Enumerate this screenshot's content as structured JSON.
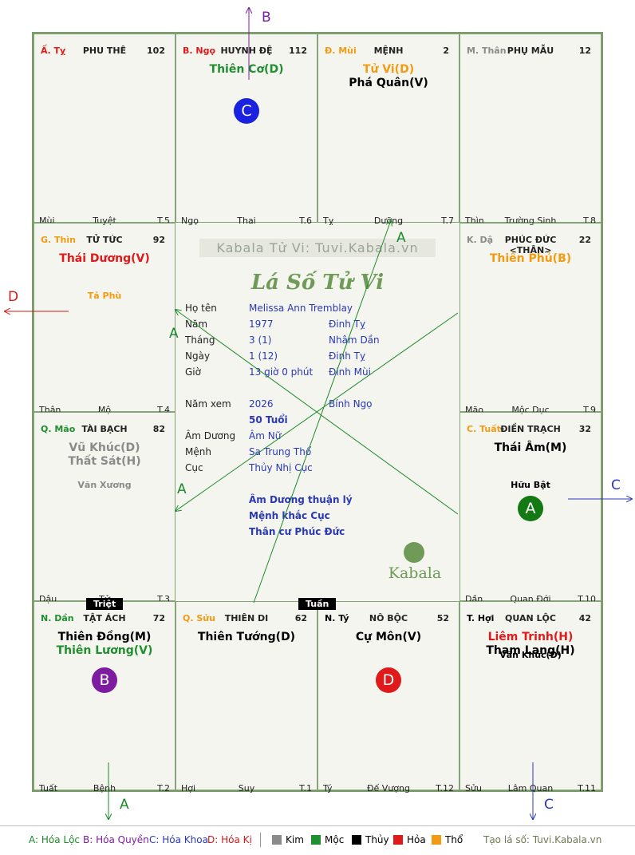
{
  "palaces": {
    "ty": {
      "can": "Ấ. Tỵ",
      "name": "PHU THÊ",
      "num": "102",
      "stars": [],
      "minors": [],
      "foot": [
        "Mùi",
        "Tuyệt",
        "T.5"
      ]
    },
    "ngo": {
      "can": "B. Ngọ",
      "name": "HUYNH ĐỆ",
      "num": "112",
      "stars": [
        "Thiên Cơ(D)"
      ],
      "minors": [],
      "foot": [
        "Ngọ",
        "Thai",
        "T.6"
      ]
    },
    "mui": {
      "can": "Đ. Mùi",
      "name": "MỆNH",
      "num": "2",
      "stars": [
        "Tử Vi(D)",
        "Phá Quân(V)"
      ],
      "minors": [],
      "foot": [
        "Tỵ",
        "Dưỡng",
        "T.7"
      ]
    },
    "than": {
      "can": "M. Thân",
      "name": "PHỤ MẪU",
      "num": "12",
      "stars": [],
      "minors": [],
      "foot": [
        "Thìn",
        "Trường Sinh",
        "T.8"
      ]
    },
    "thin": {
      "can": "G. Thìn",
      "name": "TỬ TỨC",
      "num": "92",
      "stars": [
        "Thái Dương(V)"
      ],
      "minors": [
        "Tả Phù"
      ],
      "foot": [
        "Thân",
        "Mộ",
        "T.4"
      ]
    },
    "dau": {
      "can": "K. Dậ",
      "name": "PHÚC ĐỨC <THÂN>",
      "num": "22",
      "stars": [
        "Thiên Phủ(B)"
      ],
      "minors": [],
      "foot": [
        "Mão",
        "Mộc Dục",
        "T.9"
      ]
    },
    "mao": {
      "can": "Q. Mão",
      "name": "TÀI BẠCH",
      "num": "82",
      "stars": [
        "Vũ Khúc(D)",
        "Thất Sát(H)"
      ],
      "minors": [
        "Văn Xương"
      ],
      "foot": [
        "Dậu",
        "Tử",
        "T.3"
      ]
    },
    "tuat": {
      "can": "C. Tuất",
      "name": "ĐIỀN TRẠCH",
      "num": "32",
      "stars": [
        "Thái Âm(M)"
      ],
      "minors": [
        "Hữu Bật"
      ],
      "foot": [
        "Dần",
        "Quan Đới",
        "T.10"
      ]
    },
    "dan": {
      "can": "N. Dần",
      "name": "TẬT ÁCH",
      "num": "72",
      "stars": [
        "Thiên Đồng(M)",
        "Thiên Lương(V)"
      ],
      "minors": [],
      "foot": [
        "Tuất",
        "Bệnh",
        "T.2"
      ]
    },
    "suu": {
      "can": "Q. Sửu",
      "name": "THIÊN DI",
      "num": "62",
      "stars": [
        "Thiên Tướng(D)"
      ],
      "minors": [],
      "foot": [
        "Hợi",
        "Suy",
        "T.1"
      ]
    },
    "ty2": {
      "can": "N. Tý",
      "name": "NÔ BỘC",
      "num": "52",
      "stars": [
        "Cự Môn(V)"
      ],
      "minors": [],
      "foot": [
        "Tý",
        "Đế Vượng",
        "T.12"
      ]
    },
    "hoi": {
      "can": "T. Hợi",
      "name": "QUAN LỘC",
      "num": "42",
      "stars": [
        "Liêm Trinh(H)",
        "Tham Lang(H)"
      ],
      "minors": [
        "Văn Khúc(D)"
      ],
      "foot": [
        "Sửu",
        "Lâm Quan",
        "T.11"
      ]
    }
  },
  "colors": {
    "kim": "#8a8a8a",
    "moc": "#1f8f2f",
    "thuy": "#000000",
    "hoa": "#e01a1a",
    "tho": "#f29b12"
  },
  "center": {
    "watermark": "Kabala Tử Vi: Tuvi.Kabala.vn",
    "title": "Lá Số Tử Vi",
    "labels": [
      "Họ tên",
      "Năm",
      "Tháng",
      "Ngày",
      "Giờ",
      "Năm xem",
      "Âm Dương",
      "Mệnh",
      "Cục"
    ],
    "ho_ten": "Melissa Ann Tremblay",
    "nam": "1977",
    "nam_cc": "Đinh Tỵ",
    "thang": "3  (1)",
    "thang_cc": "Nhâm Dần",
    "ngay": "1  (12)",
    "ngay_cc": "Đinh Tỵ",
    "gio": "13 giờ 0 phút",
    "gio_cc": "Đinh Mùi",
    "nam_xem": "2026",
    "nam_xem_cc": "Bính Ngọ",
    "tuoi": "50 Tuổi",
    "am_duong": "Âm Nữ",
    "menh": "Sa Trung Thổ",
    "cuc": "Thủy Nhị Cục",
    "notes": [
      "Âm Dương thuận lý",
      "Mệnh khắc Cục",
      "Thân cư Phúc Đức"
    ],
    "logo": "Kabala"
  },
  "badges": {
    "triet": "Triệt",
    "tuan": "Tuần"
  },
  "circles": {
    "ngo": "C",
    "tuat": "A",
    "dan": "B",
    "ty2": "D"
  },
  "arrows": {
    "top": "B",
    "left": "D",
    "right": "C",
    "bottom_left": "A",
    "bottom_right": "C",
    "inner": [
      "A",
      "A",
      "A"
    ]
  },
  "legend": {
    "items": [
      "A: Hóa Lộc",
      "B: Hóa Quyền",
      "C: Hóa Khoa",
      "D: Hóa Kị"
    ],
    "elements": [
      "Kim",
      "Mộc",
      "Thủy",
      "Hỏa",
      "Thổ"
    ],
    "site": "Tạo lá số: Tuvi.Kabala.vn"
  }
}
